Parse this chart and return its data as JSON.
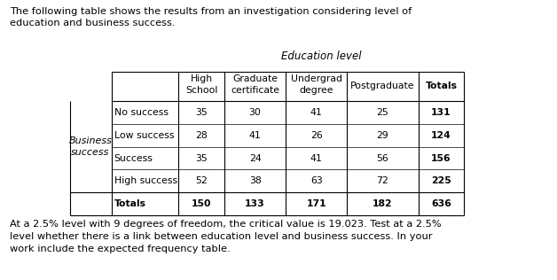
{
  "intro_text": "The following table shows the results from an investigation considering level of\neducation and business success.",
  "education_level_label": "Education level",
  "col_headers_line1": [
    "High",
    "Graduate",
    "Undergrad",
    "Postgraduate",
    "Totals"
  ],
  "col_headers_line2": [
    "School",
    "certificate",
    "degree",
    "",
    ""
  ],
  "row_headers": [
    "No success",
    "Low success",
    "Success",
    "High success",
    "Totals"
  ],
  "data": [
    [
      35,
      30,
      41,
      25,
      131
    ],
    [
      28,
      41,
      26,
      29,
      124
    ],
    [
      35,
      24,
      41,
      56,
      156
    ],
    [
      52,
      38,
      63,
      72,
      225
    ],
    [
      150,
      133,
      171,
      182,
      636
    ]
  ],
  "footer_text": "At a 2.5% level with 9 degrees of freedom, the critical value is 19.023. Test at a 2.5%\nlevel whether there is a link between education level and business success. In your\nwork include the expected frequency table.",
  "bg_color": "#ffffff",
  "text_color": "#000000"
}
